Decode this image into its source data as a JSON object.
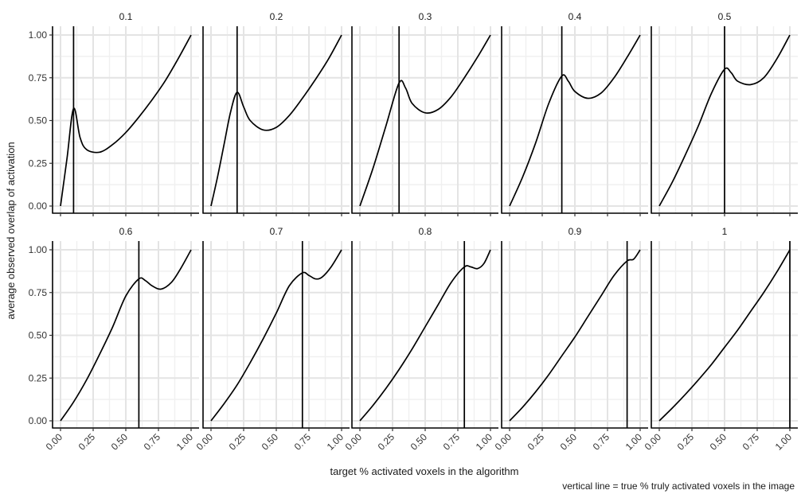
{
  "chart_data": {
    "type": "line",
    "xlabel": "target % activated voxels in the algorithm",
    "ylabel": "average observed overlap of activation",
    "caption": "vertical line = true % truly activated voxels in the image",
    "xlim": [
      0,
      1
    ],
    "ylim": [
      0,
      1
    ],
    "x_ticks": [
      "0.00",
      "0.25",
      "0.50",
      "0.75",
      "1.00"
    ],
    "y_ticks": [
      "0.00",
      "0.25",
      "0.50",
      "0.75",
      "1.00"
    ],
    "grid": true,
    "facets": [
      {
        "label": "0.1",
        "vline": 0.1,
        "x": [
          0,
          0.05,
          0.1,
          0.15,
          0.2,
          0.3,
          0.4,
          0.5,
          0.6,
          0.7,
          0.8,
          0.9,
          1.0
        ],
        "y": [
          0.0,
          0.28,
          0.57,
          0.4,
          0.33,
          0.315,
          0.36,
          0.43,
          0.52,
          0.62,
          0.73,
          0.86,
          1.0
        ]
      },
      {
        "label": "0.2",
        "vline": 0.2,
        "x": [
          0,
          0.05,
          0.1,
          0.15,
          0.2,
          0.25,
          0.3,
          0.4,
          0.5,
          0.6,
          0.7,
          0.8,
          0.9,
          1.0
        ],
        "y": [
          0.0,
          0.17,
          0.36,
          0.55,
          0.665,
          0.58,
          0.5,
          0.445,
          0.46,
          0.53,
          0.63,
          0.74,
          0.86,
          1.0
        ]
      },
      {
        "label": "0.3",
        "vline": 0.3,
        "x": [
          0,
          0.1,
          0.2,
          0.3,
          0.35,
          0.4,
          0.5,
          0.6,
          0.7,
          0.8,
          0.9,
          1.0
        ],
        "y": [
          0.0,
          0.22,
          0.47,
          0.72,
          0.69,
          0.6,
          0.545,
          0.565,
          0.64,
          0.75,
          0.87,
          1.0
        ]
      },
      {
        "label": "0.4",
        "vline": 0.4,
        "x": [
          0,
          0.1,
          0.2,
          0.3,
          0.4,
          0.45,
          0.5,
          0.6,
          0.7,
          0.8,
          0.9,
          1.0
        ],
        "y": [
          0.0,
          0.17,
          0.37,
          0.6,
          0.76,
          0.73,
          0.67,
          0.63,
          0.66,
          0.75,
          0.87,
          1.0
        ]
      },
      {
        "label": "0.5",
        "vline": 0.5,
        "x": [
          0,
          0.1,
          0.2,
          0.3,
          0.4,
          0.5,
          0.55,
          0.6,
          0.7,
          0.8,
          0.9,
          1.0
        ],
        "y": [
          0.0,
          0.14,
          0.3,
          0.47,
          0.66,
          0.8,
          0.78,
          0.73,
          0.71,
          0.75,
          0.86,
          1.0
        ]
      },
      {
        "label": "0.6",
        "vline": 0.6,
        "x": [
          0,
          0.1,
          0.2,
          0.3,
          0.4,
          0.5,
          0.6,
          0.65,
          0.7,
          0.77,
          0.85,
          0.92,
          1.0
        ],
        "y": [
          0.0,
          0.11,
          0.24,
          0.39,
          0.55,
          0.73,
          0.83,
          0.82,
          0.79,
          0.77,
          0.81,
          0.89,
          1.0
        ]
      },
      {
        "label": "0.7",
        "vline": 0.7,
        "x": [
          0,
          0.1,
          0.2,
          0.3,
          0.4,
          0.5,
          0.6,
          0.7,
          0.75,
          0.8,
          0.85,
          0.92,
          1.0
        ],
        "y": [
          0.0,
          0.1,
          0.21,
          0.34,
          0.48,
          0.63,
          0.79,
          0.865,
          0.85,
          0.83,
          0.84,
          0.9,
          1.0
        ]
      },
      {
        "label": "0.8",
        "vline": 0.8,
        "x": [
          0,
          0.1,
          0.2,
          0.3,
          0.4,
          0.5,
          0.6,
          0.7,
          0.8,
          0.85,
          0.9,
          0.95,
          1.0
        ],
        "y": [
          0.0,
          0.09,
          0.19,
          0.3,
          0.42,
          0.55,
          0.68,
          0.81,
          0.9,
          0.9,
          0.89,
          0.92,
          1.0
        ]
      },
      {
        "label": "0.9",
        "vline": 0.9,
        "x": [
          0,
          0.1,
          0.2,
          0.3,
          0.4,
          0.5,
          0.6,
          0.7,
          0.8,
          0.9,
          0.95,
          1.0
        ],
        "y": [
          0.0,
          0.08,
          0.17,
          0.27,
          0.38,
          0.49,
          0.61,
          0.73,
          0.85,
          0.935,
          0.945,
          1.0
        ]
      },
      {
        "label": "1",
        "vline": 1.0,
        "x": [
          0,
          0.1,
          0.2,
          0.3,
          0.4,
          0.5,
          0.6,
          0.7,
          0.8,
          0.9,
          1.0
        ],
        "y": [
          0.0,
          0.075,
          0.155,
          0.24,
          0.33,
          0.43,
          0.53,
          0.64,
          0.75,
          0.87,
          1.0
        ]
      }
    ]
  }
}
